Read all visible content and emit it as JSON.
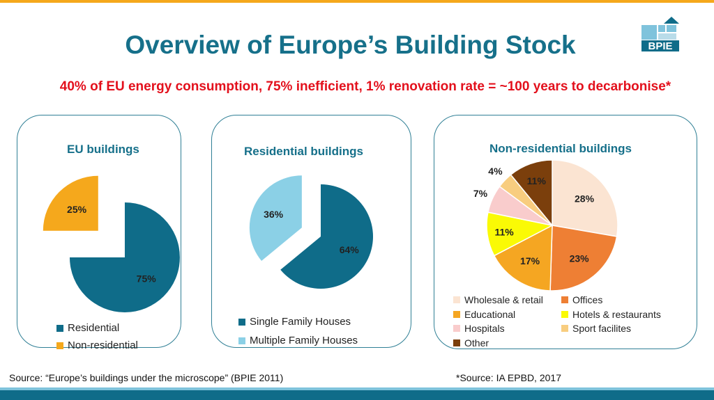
{
  "header": {
    "title": "Overview of Europe’s Building Stock",
    "subtitle": "40% of EU energy consumption, 75% inefficient, 1% renovation rate = ~100 years to decarbonise*",
    "logo_text": "BPIE"
  },
  "colors": {
    "teal": "#0f6c89",
    "light_blue": "#87ceeb",
    "orange": "#f5a81c",
    "title_blue": "#16708a",
    "red": "#e3101c"
  },
  "chart_data": [
    {
      "type": "pie",
      "title": "EU buildings",
      "slices": [
        {
          "name": "Residential",
          "value": 75,
          "label": "75%",
          "color": "#0f6c89"
        },
        {
          "name": "Non-residential",
          "value": 25,
          "label": "25%",
          "color": "#f5a81c"
        }
      ]
    },
    {
      "type": "pie",
      "title": "Residential buildings",
      "slices": [
        {
          "name": "Single Family Houses",
          "value": 64,
          "label": "64%",
          "color": "#0f6c89"
        },
        {
          "name": "Multiple Family Houses",
          "value": 36,
          "label": "36%",
          "color": "#8bd0e6"
        }
      ]
    },
    {
      "type": "pie",
      "title": "Non-residential buildings",
      "slices": [
        {
          "name": "Wholesale & retail",
          "value": 28,
          "label": "28%",
          "color": "#fbe4d2"
        },
        {
          "name": "Offices",
          "value": 23,
          "label": "23%",
          "color": "#ee7f34"
        },
        {
          "name": "Educational",
          "value": 17,
          "label": "17%",
          "color": "#f5a622"
        },
        {
          "name": "Hotels & restaurants",
          "value": 11,
          "label": "11%",
          "color": "#fafa05"
        },
        {
          "name": "Hospitals",
          "value": 7,
          "label": "7%",
          "color": "#f9cccc"
        },
        {
          "name": "Sport facilites",
          "value": 4,
          "label": "4%",
          "color": "#f8cd7f"
        },
        {
          "name": "Other",
          "value": 11,
          "label": "11%",
          "color": "#7b3f0c"
        }
      ]
    }
  ],
  "footer": {
    "source_left": "Source: “Europe’s buildings under the microscope” (BPIE 2011)",
    "source_right": "*Source: IA EPBD, 2017"
  }
}
